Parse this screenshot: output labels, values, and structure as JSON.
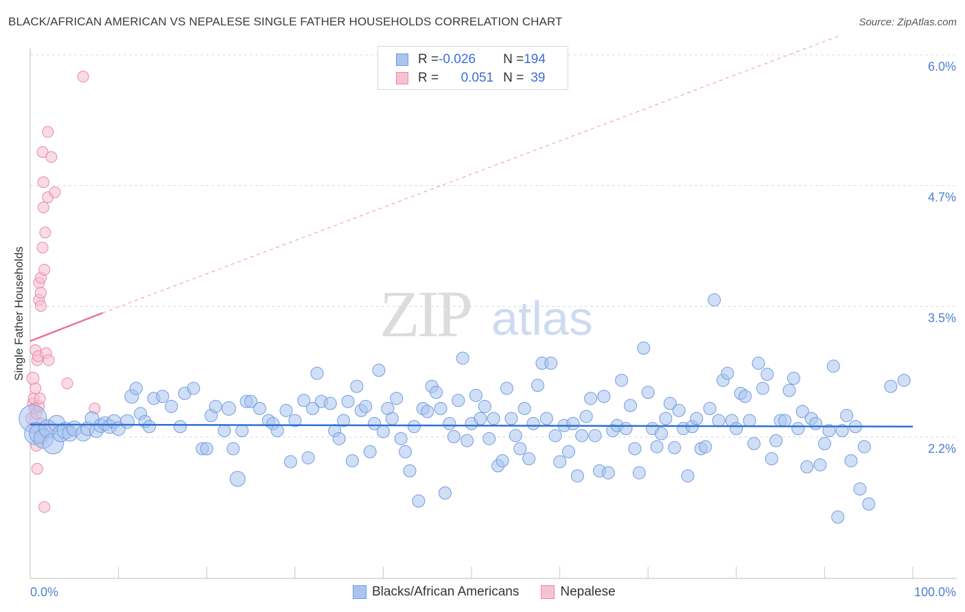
{
  "title": "BLACK/AFRICAN AMERICAN VS NEPALESE SINGLE FATHER HOUSEHOLDS CORRELATION CHART",
  "source": "Source: ZipAtlas.com",
  "watermark": {
    "zip": "ZIP",
    "atlas": "atlas"
  },
  "legend_top": {
    "rows": [
      {
        "r_label": "R = ",
        "r_value": "-0.026",
        "n_label": "N = ",
        "n_value": "194"
      },
      {
        "r_label": "R = ",
        "r_value": "0.051",
        "n_label": "N = ",
        "n_value": "39"
      }
    ]
  },
  "colors": {
    "blue_fill": "#aac4ee",
    "blue_stroke": "#6f9be0",
    "blue_line": "#2f6fce",
    "pink_fill": "#f6c2d2",
    "pink_stroke": "#ea88a6",
    "pink_line": "#e8739a",
    "grid": "#d9d9d9",
    "tick_text": "#4f7fcf"
  },
  "chart_data": {
    "type": "scatter",
    "title": "BLACK/AFRICAN AMERICAN VS NEPALESE SINGLE FATHER HOUSEHOLDS CORRELATION CHART",
    "xlabel": "",
    "ylabel": "Single Father Households",
    "xlim": [
      0,
      100
    ],
    "ylim": [
      0.8,
      6.3
    ],
    "x_tick_labels": [
      "0.0%",
      "100.0%"
    ],
    "y_ticks": [
      2.2,
      3.5,
      4.7,
      6.0
    ],
    "y_tick_labels": [
      "2.2%",
      "3.5%",
      "4.7%",
      "6.0%"
    ],
    "grid": true,
    "legend_position": "bottom",
    "series": [
      {
        "name": "Blacks/African Americans",
        "color": "#aac4ee",
        "r": -0.026,
        "n": 194,
        "trend": {
          "x": [
            0,
            100
          ],
          "y": [
            2.44,
            2.42
          ],
          "style": "solid"
        },
        "points": [
          [
            0.3,
            2.5,
            20
          ],
          [
            0.6,
            2.35,
            16
          ],
          [
            1,
            2.35,
            14
          ],
          [
            1.5,
            2.3,
            14
          ],
          [
            2,
            2.4,
            13
          ],
          [
            2.6,
            2.25,
            15
          ],
          [
            3,
            2.45,
            12
          ],
          [
            3.5,
            2.35,
            12
          ],
          [
            4,
            2.38,
            12
          ],
          [
            4.5,
            2.35,
            11
          ],
          [
            5,
            2.4,
            11
          ],
          [
            6,
            2.35,
            11
          ],
          [
            6.5,
            2.4,
            10
          ],
          [
            7,
            2.5,
            10
          ],
          [
            7.5,
            2.38,
            10
          ],
          [
            8,
            2.43,
            10
          ],
          [
            8.5,
            2.45,
            10
          ],
          [
            9,
            2.42,
            10
          ],
          [
            9.5,
            2.47,
            10
          ],
          [
            10,
            2.4,
            10
          ],
          [
            11,
            2.47,
            10
          ],
          [
            11.5,
            2.72,
            10
          ],
          [
            12,
            2.8,
            9
          ],
          [
            12.5,
            2.55,
            9
          ],
          [
            13,
            2.47,
            9
          ],
          [
            13.5,
            2.42,
            9
          ],
          [
            14,
            2.7,
            9
          ],
          [
            15,
            2.72,
            9
          ],
          [
            16,
            2.62,
            9
          ],
          [
            17,
            2.42,
            9
          ],
          [
            17.5,
            2.75,
            9
          ],
          [
            18.5,
            2.8,
            9
          ],
          [
            19.5,
            2.2,
            9
          ],
          [
            20,
            2.2,
            9
          ],
          [
            20.5,
            2.53,
            9
          ],
          [
            21,
            2.62,
            9
          ],
          [
            22,
            2.38,
            9
          ],
          [
            22.5,
            2.6,
            10
          ],
          [
            23,
            2.2,
            9
          ],
          [
            23.5,
            1.9,
            11
          ],
          [
            24,
            2.38,
            9
          ],
          [
            24.5,
            2.67,
            9
          ],
          [
            25,
            2.67,
            9
          ],
          [
            26,
            2.6,
            9
          ],
          [
            27,
            2.48,
            9
          ],
          [
            27.5,
            2.45,
            9
          ],
          [
            28,
            2.38,
            9
          ],
          [
            29,
            2.58,
            9
          ],
          [
            29.5,
            2.07,
            9
          ],
          [
            30,
            2.48,
            9
          ],
          [
            31,
            2.68,
            9
          ],
          [
            31.5,
            2.11,
            9
          ],
          [
            32,
            2.6,
            9
          ],
          [
            32.5,
            2.95,
            9
          ],
          [
            33,
            2.67,
            9
          ],
          [
            34,
            2.65,
            9
          ],
          [
            34.5,
            2.38,
            9
          ],
          [
            35,
            2.3,
            9
          ],
          [
            35.5,
            2.48,
            9
          ],
          [
            36,
            2.67,
            9
          ],
          [
            36.5,
            2.08,
            9
          ],
          [
            37,
            2.82,
            9
          ],
          [
            37.5,
            2.58,
            9
          ],
          [
            38,
            2.62,
            9
          ],
          [
            38.5,
            2.17,
            9
          ],
          [
            39,
            2.45,
            9
          ],
          [
            39.5,
            2.98,
            9
          ],
          [
            40,
            2.37,
            9
          ],
          [
            40.5,
            2.6,
            9
          ],
          [
            41,
            2.5,
            9
          ],
          [
            41.5,
            2.7,
            9
          ],
          [
            42,
            2.3,
            9
          ],
          [
            42.5,
            2.17,
            9
          ],
          [
            43,
            1.98,
            9
          ],
          [
            43.5,
            2.42,
            9
          ],
          [
            44,
            1.68,
            9
          ],
          [
            44.5,
            2.6,
            9
          ],
          [
            45,
            2.57,
            9
          ],
          [
            45.5,
            2.82,
            9
          ],
          [
            46,
            2.76,
            9
          ],
          [
            46.5,
            2.6,
            9
          ],
          [
            47,
            1.76,
            9
          ],
          [
            47.5,
            2.45,
            9
          ],
          [
            48,
            2.32,
            9
          ],
          [
            48.5,
            2.68,
            9
          ],
          [
            49,
            3.1,
            9
          ],
          [
            49.5,
            2.28,
            9
          ],
          [
            50,
            2.45,
            9
          ],
          [
            50.5,
            2.73,
            9
          ],
          [
            51,
            2.5,
            9
          ],
          [
            51.5,
            2.62,
            9
          ],
          [
            52,
            2.3,
            9
          ],
          [
            52.5,
            2.5,
            9
          ],
          [
            53,
            2.03,
            9
          ],
          [
            53.5,
            2.08,
            9
          ],
          [
            54,
            2.8,
            9
          ],
          [
            54.5,
            2.5,
            9
          ],
          [
            55,
            2.33,
            9
          ],
          [
            55.5,
            2.2,
            9
          ],
          [
            56,
            2.6,
            9
          ],
          [
            56.5,
            2.1,
            9
          ],
          [
            57,
            2.45,
            9
          ],
          [
            57.5,
            2.83,
            9
          ],
          [
            58,
            3.05,
            9
          ],
          [
            58.5,
            2.5,
            9
          ],
          [
            59,
            3.05,
            9
          ],
          [
            59.5,
            2.33,
            9
          ],
          [
            60,
            2.07,
            9
          ],
          [
            60.5,
            2.43,
            9
          ],
          [
            61,
            2.17,
            9
          ],
          [
            61.5,
            2.45,
            9
          ],
          [
            62,
            1.93,
            9
          ],
          [
            62.5,
            2.33,
            9
          ],
          [
            63,
            2.52,
            9
          ],
          [
            63.5,
            2.7,
            9
          ],
          [
            64,
            2.33,
            9
          ],
          [
            64.5,
            1.98,
            9
          ],
          [
            65,
            2.72,
            9
          ],
          [
            65.5,
            1.96,
            9
          ],
          [
            66,
            2.38,
            9
          ],
          [
            66.5,
            2.43,
            9
          ],
          [
            67,
            2.88,
            9
          ],
          [
            67.5,
            2.4,
            9
          ],
          [
            68,
            2.63,
            9
          ],
          [
            68.5,
            2.2,
            9
          ],
          [
            69,
            1.96,
            9
          ],
          [
            69.5,
            3.2,
            9
          ],
          [
            70,
            2.76,
            9
          ],
          [
            70.5,
            2.4,
            9
          ],
          [
            71,
            2.22,
            9
          ],
          [
            71.5,
            2.35,
            9
          ],
          [
            72,
            2.5,
            9
          ],
          [
            72.5,
            2.65,
            9
          ],
          [
            73,
            2.21,
            9
          ],
          [
            73.5,
            2.58,
            9
          ],
          [
            74,
            2.4,
            9
          ],
          [
            74.5,
            1.93,
            9
          ],
          [
            75,
            2.42,
            9
          ],
          [
            75.5,
            2.5,
            9
          ],
          [
            76,
            2.2,
            9
          ],
          [
            76.5,
            2.22,
            9
          ],
          [
            77,
            2.6,
            9
          ],
          [
            77.5,
            3.68,
            9
          ],
          [
            78,
            2.48,
            9
          ],
          [
            78.5,
            2.88,
            9
          ],
          [
            79,
            2.95,
            9
          ],
          [
            79.5,
            2.48,
            9
          ],
          [
            80,
            2.4,
            9
          ],
          [
            80.5,
            2.75,
            9
          ],
          [
            81,
            2.72,
            9
          ],
          [
            81.5,
            2.48,
            9
          ],
          [
            82,
            2.25,
            9
          ],
          [
            82.5,
            3.05,
            9
          ],
          [
            83,
            2.8,
            9
          ],
          [
            83.5,
            2.94,
            9
          ],
          [
            84,
            2.1,
            9
          ],
          [
            84.5,
            2.28,
            9
          ],
          [
            85,
            2.48,
            9
          ],
          [
            85.5,
            2.48,
            9
          ],
          [
            86,
            2.78,
            9
          ],
          [
            86.5,
            2.9,
            9
          ],
          [
            87,
            2.4,
            9
          ],
          [
            87.5,
            2.57,
            9
          ],
          [
            88,
            2.02,
            9
          ],
          [
            88.5,
            2.5,
            9
          ],
          [
            89,
            2.45,
            9
          ],
          [
            89.5,
            2.04,
            9
          ],
          [
            90,
            2.25,
            9
          ],
          [
            90.5,
            2.38,
            9
          ],
          [
            91,
            3.02,
            9
          ],
          [
            91.5,
            1.52,
            9
          ],
          [
            92,
            2.38,
            9
          ],
          [
            92.5,
            2.53,
            9
          ],
          [
            93,
            2.08,
            9
          ],
          [
            93.5,
            2.42,
            9
          ],
          [
            94,
            1.8,
            9
          ],
          [
            94.5,
            2.22,
            9
          ],
          [
            95,
            1.65,
            9
          ],
          [
            97.5,
            2.82,
            9
          ],
          [
            99,
            2.88,
            9
          ]
        ]
      },
      {
        "name": "Nepalese",
        "color": "#f6c2d2",
        "r": 0.051,
        "n": 39,
        "trend": {
          "x": [
            0,
            8.2
          ],
          "y": [
            3.27,
            3.55
          ],
          "x_dashed_end": 91.5,
          "y_dashed_end": 6.3,
          "style": "solid-then-dashed"
        },
        "points": [
          [
            0.2,
            2.5,
            9
          ],
          [
            0.3,
            2.9,
            9
          ],
          [
            0.3,
            2.65,
            8
          ],
          [
            0.4,
            2.7,
            8
          ],
          [
            0.5,
            2.6,
            8
          ],
          [
            0.5,
            2.4,
            8
          ],
          [
            0.6,
            3.18,
            8
          ],
          [
            0.6,
            2.8,
            8
          ],
          [
            0.7,
            2.55,
            8
          ],
          [
            0.7,
            2.23,
            8
          ],
          [
            0.8,
            2.0,
            8
          ],
          [
            0.8,
            3.08,
            8
          ],
          [
            0.9,
            3.12,
            8
          ],
          [
            1.0,
            3.68,
            8
          ],
          [
            1.0,
            3.85,
            8
          ],
          [
            1.0,
            2.62,
            8
          ],
          [
            1.1,
            2.7,
            8
          ],
          [
            1.2,
            3.75,
            8
          ],
          [
            1.2,
            3.62,
            8
          ],
          [
            1.2,
            3.9,
            8
          ],
          [
            1.3,
            2.45,
            8
          ],
          [
            1.3,
            2.3,
            8
          ],
          [
            1.4,
            4.2,
            8
          ],
          [
            1.4,
            5.15,
            8
          ],
          [
            1.5,
            4.85,
            8
          ],
          [
            1.5,
            4.6,
            8
          ],
          [
            1.6,
            3.98,
            8
          ],
          [
            1.6,
            1.62,
            8
          ],
          [
            1.7,
            4.35,
            8
          ],
          [
            1.8,
            3.15,
            8
          ],
          [
            2.0,
            5.35,
            8
          ],
          [
            2.0,
            4.7,
            8
          ],
          [
            2.1,
            3.08,
            8
          ],
          [
            2.2,
            2.42,
            8
          ],
          [
            2.4,
            5.1,
            8
          ],
          [
            2.8,
            4.75,
            8
          ],
          [
            4.2,
            2.85,
            8
          ],
          [
            6.0,
            5.9,
            8
          ],
          [
            7.3,
            2.6,
            8
          ]
        ]
      }
    ]
  }
}
